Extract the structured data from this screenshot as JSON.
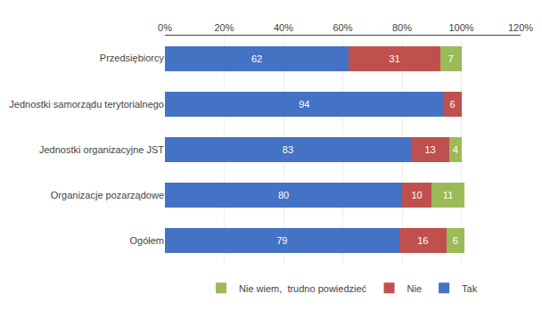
{
  "chart_data": {
    "type": "bar",
    "orientation": "horizontal",
    "stacked": true,
    "categories": [
      "Przedsiębiorcy",
      "Jednostki samorządu terytorialnego",
      "Jednostki organizacyjne JST",
      "Organizacje pozarządowe",
      "Ogółem"
    ],
    "series": [
      {
        "name": "Tak",
        "color": "#4472C4",
        "values": [
          62,
          94,
          83,
          80,
          79
        ]
      },
      {
        "name": "Nie",
        "color": "#C0504D",
        "values": [
          31,
          6,
          13,
          10,
          16
        ]
      },
      {
        "name": "Nie wiem,  trudno powiedzieć",
        "color": "#9BBB59",
        "values": [
          7,
          0,
          4,
          11,
          6
        ]
      }
    ],
    "xlim": [
      0,
      120
    ],
    "xticks": [
      {
        "value": 0,
        "label": "0%"
      },
      {
        "value": 20,
        "label": "20%"
      },
      {
        "value": 40,
        "label": "40%"
      },
      {
        "value": 60,
        "label": "60%"
      },
      {
        "value": 80,
        "label": "80%"
      },
      {
        "value": 100,
        "label": "100%"
      },
      {
        "value": 120,
        "label": "120%"
      }
    ],
    "grid": true,
    "legend": "bottom",
    "data_labels": true
  }
}
